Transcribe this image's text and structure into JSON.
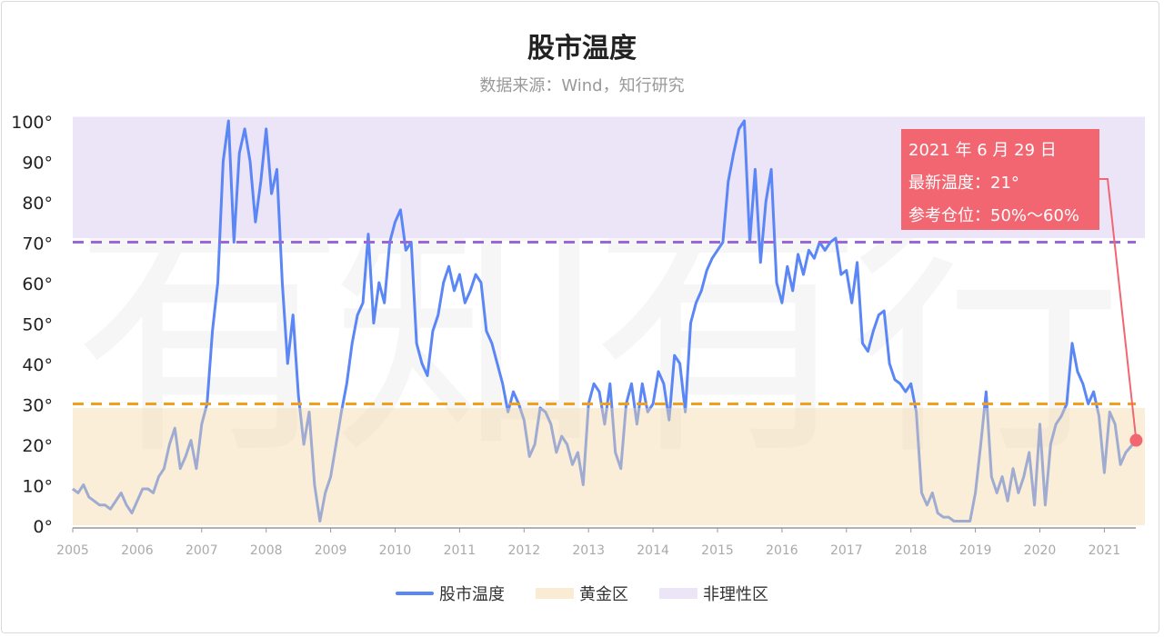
{
  "title": "股市温度",
  "subtitle": "数据来源：Wind，知行研究",
  "watermark": "有知有行",
  "tooltip": {
    "date": "2021 年 6 月 29 日",
    "latest": "最新温度：21°",
    "position": "参考仓位：50%～60%"
  },
  "legend": [
    {
      "label": "股市温度",
      "color": "#5b86f5"
    },
    {
      "label": "黄金区",
      "color": "#faebd4"
    },
    {
      "label": "非理性区",
      "color": "#ece4f7"
    }
  ],
  "chart_data": {
    "type": "line",
    "title": "股市温度",
    "xlabel": "",
    "ylabel": "",
    "ylim": [
      0,
      100
    ],
    "yticks": [
      "0°",
      "10°",
      "20°",
      "30°",
      "40°",
      "50°",
      "60°",
      "70°",
      "80°",
      "90°",
      "100°"
    ],
    "xticks": [
      "2005",
      "2006",
      "2007",
      "2008",
      "2009",
      "2010",
      "2011",
      "2012",
      "2013",
      "2014",
      "2015",
      "2016",
      "2017",
      "2018",
      "2019",
      "2020",
      "2021"
    ],
    "grid": false,
    "legend_position": "bottom",
    "bands": [
      {
        "name": "黄金区",
        "from": 0,
        "to": 29,
        "color": "#faebd4"
      },
      {
        "name": "非理性区",
        "from": 71,
        "to": 101,
        "color": "#ece4f7"
      }
    ],
    "reference_lines": [
      {
        "value": 30,
        "color": "#f0a020",
        "style": "dashed"
      },
      {
        "value": 70,
        "color": "#9b66d8",
        "style": "dashed"
      }
    ],
    "highlight": {
      "date": "2021-06-29",
      "value": 21,
      "color": "#f26672"
    },
    "series": [
      {
        "name": "股市温度",
        "color": "#5b86f5",
        "points": [
          [
            "2005-01",
            9
          ],
          [
            "2005-02",
            8
          ],
          [
            "2005-03",
            10
          ],
          [
            "2005-04",
            7
          ],
          [
            "2005-05",
            6
          ],
          [
            "2005-06",
            5
          ],
          [
            "2005-07",
            5
          ],
          [
            "2005-08",
            4
          ],
          [
            "2005-09",
            6
          ],
          [
            "2005-10",
            8
          ],
          [
            "2005-11",
            5
          ],
          [
            "2005-12",
            3
          ],
          [
            "2006-01",
            6
          ],
          [
            "2006-02",
            9
          ],
          [
            "2006-03",
            9
          ],
          [
            "2006-04",
            8
          ],
          [
            "2006-05",
            12
          ],
          [
            "2006-06",
            14
          ],
          [
            "2006-07",
            20
          ],
          [
            "2006-08",
            24
          ],
          [
            "2006-09",
            14
          ],
          [
            "2006-10",
            17
          ],
          [
            "2006-11",
            21
          ],
          [
            "2006-12",
            14
          ],
          [
            "2007-01",
            25
          ],
          [
            "2007-02",
            30
          ],
          [
            "2007-03",
            48
          ],
          [
            "2007-04",
            60
          ],
          [
            "2007-05",
            90
          ],
          [
            "2007-06",
            100
          ],
          [
            "2007-07",
            70
          ],
          [
            "2007-08",
            92
          ],
          [
            "2007-09",
            98
          ],
          [
            "2007-10",
            90
          ],
          [
            "2007-11",
            75
          ],
          [
            "2007-12",
            85
          ],
          [
            "2008-01",
            98
          ],
          [
            "2008-02",
            82
          ],
          [
            "2008-03",
            88
          ],
          [
            "2008-04",
            60
          ],
          [
            "2008-05",
            40
          ],
          [
            "2008-06",
            52
          ],
          [
            "2008-07",
            32
          ],
          [
            "2008-08",
            20
          ],
          [
            "2008-09",
            28
          ],
          [
            "2008-10",
            10
          ],
          [
            "2008-11",
            1
          ],
          [
            "2008-12",
            8
          ],
          [
            "2009-01",
            12
          ],
          [
            "2009-02",
            20
          ],
          [
            "2009-03",
            28
          ],
          [
            "2009-04",
            35
          ],
          [
            "2009-05",
            45
          ],
          [
            "2009-06",
            52
          ],
          [
            "2009-07",
            55
          ],
          [
            "2009-08",
            72
          ],
          [
            "2009-09",
            50
          ],
          [
            "2009-10",
            60
          ],
          [
            "2009-11",
            55
          ],
          [
            "2009-12",
            70
          ],
          [
            "2010-01",
            75
          ],
          [
            "2010-02",
            78
          ],
          [
            "2010-03",
            68
          ],
          [
            "2010-04",
            70
          ],
          [
            "2010-05",
            45
          ],
          [
            "2010-06",
            40
          ],
          [
            "2010-07",
            37
          ],
          [
            "2010-08",
            48
          ],
          [
            "2010-09",
            52
          ],
          [
            "2010-10",
            60
          ],
          [
            "2010-11",
            64
          ],
          [
            "2010-12",
            58
          ],
          [
            "2011-01",
            62
          ],
          [
            "2011-02",
            55
          ],
          [
            "2011-03",
            58
          ],
          [
            "2011-04",
            62
          ],
          [
            "2011-05",
            60
          ],
          [
            "2011-06",
            48
          ],
          [
            "2011-07",
            45
          ],
          [
            "2011-08",
            40
          ],
          [
            "2011-09",
            35
          ],
          [
            "2011-10",
            28
          ],
          [
            "2011-11",
            33
          ],
          [
            "2011-12",
            30
          ],
          [
            "2012-01",
            26
          ],
          [
            "2012-02",
            17
          ],
          [
            "2012-03",
            20
          ],
          [
            "2012-04",
            29
          ],
          [
            "2012-05",
            28
          ],
          [
            "2012-06",
            25
          ],
          [
            "2012-07",
            18
          ],
          [
            "2012-08",
            22
          ],
          [
            "2012-09",
            20
          ],
          [
            "2012-10",
            15
          ],
          [
            "2012-11",
            18
          ],
          [
            "2012-12",
            10
          ],
          [
            "2013-01",
            30
          ],
          [
            "2013-02",
            35
          ],
          [
            "2013-03",
            33
          ],
          [
            "2013-04",
            25
          ],
          [
            "2013-05",
            35
          ],
          [
            "2013-06",
            18
          ],
          [
            "2013-07",
            14
          ],
          [
            "2013-08",
            30
          ],
          [
            "2013-09",
            35
          ],
          [
            "2013-10",
            25
          ],
          [
            "2013-11",
            35
          ],
          [
            "2013-12",
            28
          ],
          [
            "2014-01",
            30
          ],
          [
            "2014-02",
            38
          ],
          [
            "2014-03",
            35
          ],
          [
            "2014-04",
            26
          ],
          [
            "2014-05",
            42
          ],
          [
            "2014-06",
            40
          ],
          [
            "2014-07",
            28
          ],
          [
            "2014-08",
            50
          ],
          [
            "2014-09",
            55
          ],
          [
            "2014-10",
            58
          ],
          [
            "2014-11",
            63
          ],
          [
            "2014-12",
            66
          ],
          [
            "2015-01",
            68
          ],
          [
            "2015-02",
            70
          ],
          [
            "2015-03",
            85
          ],
          [
            "2015-04",
            92
          ],
          [
            "2015-05",
            98
          ],
          [
            "2015-06",
            100
          ],
          [
            "2015-07",
            70
          ],
          [
            "2015-08",
            88
          ],
          [
            "2015-09",
            65
          ],
          [
            "2015-10",
            80
          ],
          [
            "2015-11",
            88
          ],
          [
            "2015-12",
            60
          ],
          [
            "2016-01",
            55
          ],
          [
            "2016-02",
            64
          ],
          [
            "2016-03",
            58
          ],
          [
            "2016-04",
            67
          ],
          [
            "2016-05",
            62
          ],
          [
            "2016-06",
            68
          ],
          [
            "2016-07",
            66
          ],
          [
            "2016-08",
            70
          ],
          [
            "2016-09",
            68
          ],
          [
            "2016-10",
            70
          ],
          [
            "2016-11",
            71
          ],
          [
            "2016-12",
            62
          ],
          [
            "2017-01",
            63
          ],
          [
            "2017-02",
            55
          ],
          [
            "2017-03",
            65
          ],
          [
            "2017-04",
            45
          ],
          [
            "2017-05",
            43
          ],
          [
            "2017-06",
            48
          ],
          [
            "2017-07",
            52
          ],
          [
            "2017-08",
            53
          ],
          [
            "2017-09",
            40
          ],
          [
            "2017-10",
            36
          ],
          [
            "2017-11",
            35
          ],
          [
            "2017-12",
            33
          ],
          [
            "2018-01",
            35
          ],
          [
            "2018-02",
            28
          ],
          [
            "2018-03",
            8
          ],
          [
            "2018-04",
            5
          ],
          [
            "2018-05",
            8
          ],
          [
            "2018-06",
            3
          ],
          [
            "2018-07",
            2
          ],
          [
            "2018-08",
            2
          ],
          [
            "2018-09",
            1
          ],
          [
            "2018-10",
            1
          ],
          [
            "2018-11",
            1
          ],
          [
            "2018-12",
            1
          ],
          [
            "2019-01",
            8
          ],
          [
            "2019-02",
            20
          ],
          [
            "2019-03",
            33
          ],
          [
            "2019-04",
            12
          ],
          [
            "2019-05",
            8
          ],
          [
            "2019-06",
            12
          ],
          [
            "2019-07",
            6
          ],
          [
            "2019-08",
            14
          ],
          [
            "2019-09",
            8
          ],
          [
            "2019-10",
            12
          ],
          [
            "2019-11",
            18
          ],
          [
            "2019-12",
            5
          ],
          [
            "2020-01",
            25
          ],
          [
            "2020-02",
            5
          ],
          [
            "2020-03",
            20
          ],
          [
            "2020-04",
            25
          ],
          [
            "2020-05",
            27
          ],
          [
            "2020-06",
            30
          ],
          [
            "2020-07",
            45
          ],
          [
            "2020-08",
            38
          ],
          [
            "2020-09",
            35
          ],
          [
            "2020-10",
            30
          ],
          [
            "2020-11",
            33
          ],
          [
            "2020-12",
            27
          ],
          [
            "2021-01",
            13
          ],
          [
            "2021-02",
            28
          ],
          [
            "2021-03",
            25
          ],
          [
            "2021-04",
            15
          ],
          [
            "2021-05",
            18
          ],
          [
            "2021-06-29",
            21
          ]
        ]
      }
    ]
  }
}
